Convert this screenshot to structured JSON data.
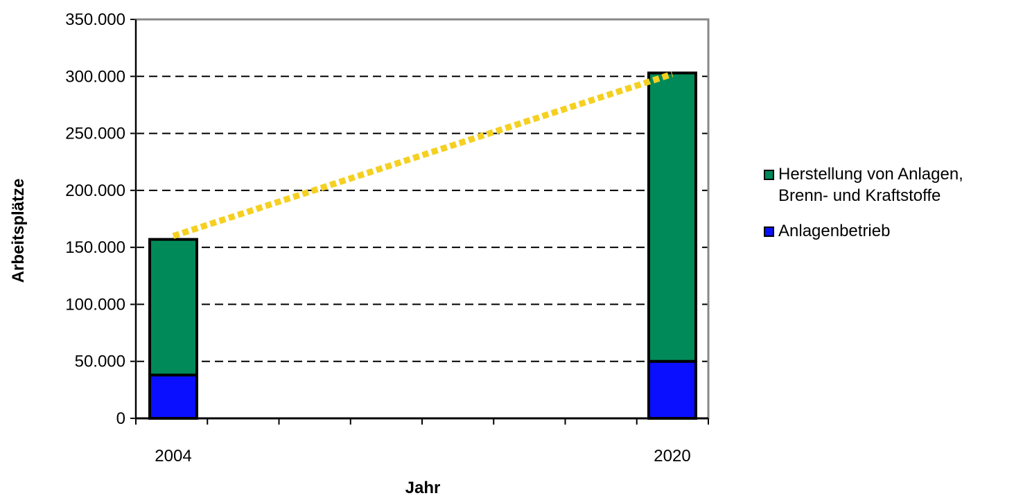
{
  "chart_data": {
    "type": "bar",
    "stacked": true,
    "categories": [
      "2004",
      "2020"
    ],
    "series": [
      {
        "name": "Anlagenbetrieb",
        "values": [
          38000,
          50000
        ],
        "color": "#0a10ff"
      },
      {
        "name": "Herstellung von Anlagen,\nBrenn- und Kraftstoffe",
        "values": [
          119000,
          253000
        ],
        "color": "#008a5a"
      }
    ],
    "trend_line": {
      "from": 160000,
      "to": 302000,
      "color": "#f5d020",
      "style": "dotted"
    },
    "xlabel": "Jahr",
    "ylabel": "Arbeitsplätze",
    "ylim": [
      0,
      350000
    ],
    "yticks": [
      "0",
      "50.000",
      "100.000",
      "150.000",
      "200.000",
      "250.000",
      "300.000",
      "350.000"
    ],
    "grid": "horizontal dashed",
    "legend_position": "right"
  }
}
